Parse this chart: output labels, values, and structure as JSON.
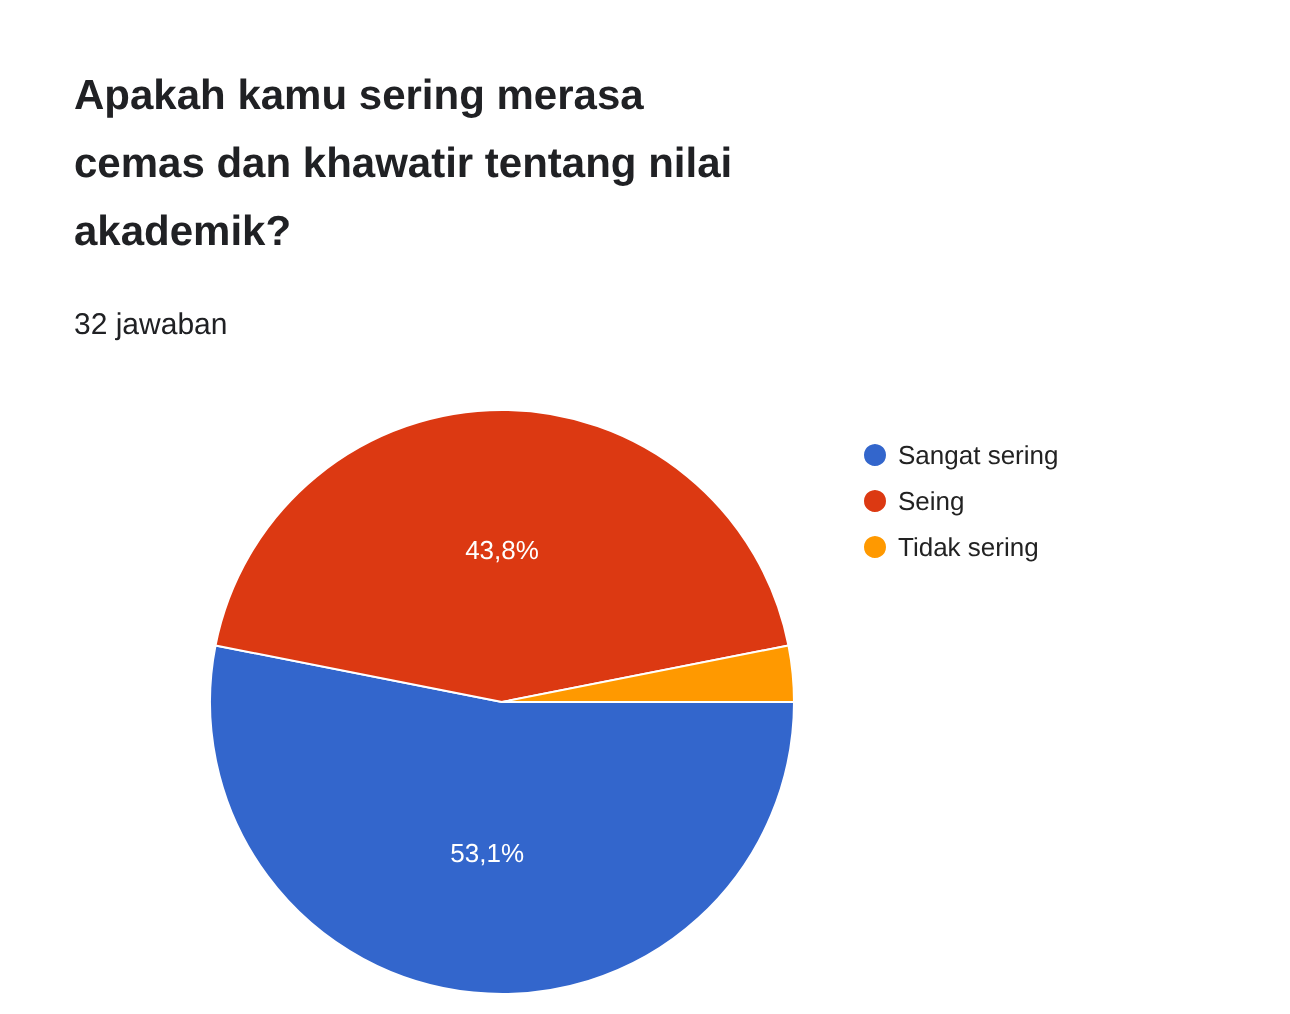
{
  "chart_data": {
    "type": "pie",
    "title": "Apakah kamu sering merasa cemas dan khawatir tentang nilai akademik?",
    "subtitle": "32 jawaban",
    "categories": [
      "Sangat sering",
      "Seing",
      "Tidak sering"
    ],
    "values": [
      53.1,
      43.8,
      3.1
    ],
    "colors": [
      "#3366cc",
      "#dc3912",
      "#ff9900"
    ],
    "value_labels": [
      "53,1%",
      "43,8%",
      null
    ],
    "legend": "right"
  }
}
